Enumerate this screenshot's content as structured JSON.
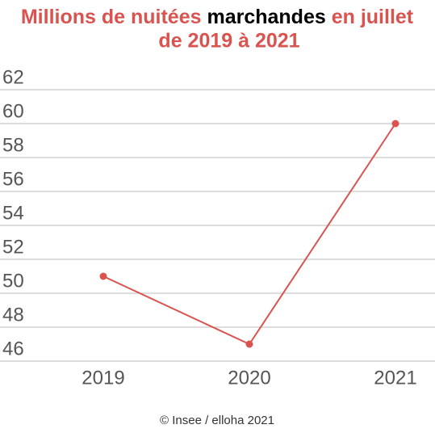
{
  "chart_data": {
    "type": "line",
    "title": [
      "Millions de nuitées",
      "marchandes",
      "en juillet",
      "de 2019 à 2021"
    ],
    "categories": [
      "2019",
      "2020",
      "2021"
    ],
    "series": [
      {
        "name": "Millions de nuitées marchandes",
        "color": "#d9534f",
        "values": [
          51,
          47,
          60
        ]
      }
    ],
    "ylim": [
      46,
      62
    ],
    "yticks": [
      46,
      48,
      50,
      52,
      54,
      56,
      58,
      60,
      62
    ],
    "grid": true,
    "source": "© Insee / elloha 2021"
  }
}
